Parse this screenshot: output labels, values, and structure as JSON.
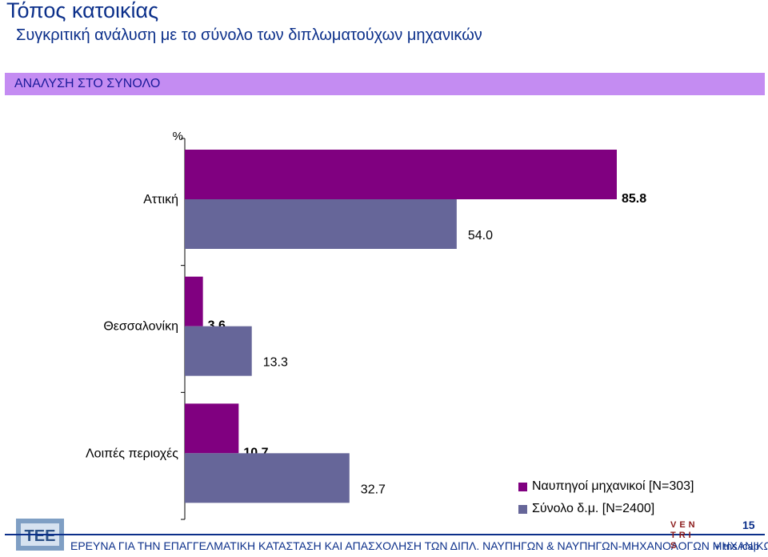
{
  "header": {
    "title": "Τόπος κατοικίας",
    "subtitle": "Συγκριτική ανάλυση με το σύνολο των διπλωματούχων μηχανικών",
    "band_label": "ΑΝΑΛΥΣΗ ΣΤΟ ΣΥΝΟΛΟ"
  },
  "chart_data": {
    "type": "bar",
    "orientation": "horizontal",
    "unit_label": "%",
    "categories": [
      "Αττική",
      "Θεσσαλονίκη",
      "Λοιπές περιοχές"
    ],
    "series": [
      {
        "name": "Ναυπηγοί μηχανικοί [Ν=303]",
        "color": "#800080",
        "values": [
          85.8,
          3.6,
          10.7
        ],
        "labels": [
          "85.8",
          "3.6",
          "10.7"
        ]
      },
      {
        "name": "Σύνολο δ.μ. [Ν=2400]",
        "color": "#666699",
        "values": [
          54.0,
          13.3,
          32.7
        ],
        "labels": [
          "54.0",
          "13.3",
          "32.7"
        ]
      }
    ],
    "xlim": [
      0,
      100
    ],
    "grid": false,
    "legend_position": "bottom-right"
  },
  "footer": {
    "text": "ΕΡΕΥΝΑ ΓΙΑ ΤΗΝ ΕΠΑΓΓΕΛΜΑΤΙΚΗ ΚΑΤΑΣΤΑΣΗ ΚΑΙ ΑΠΑΣΧΟΛΗΣΗ ΤΩΝ ΔΙΠΛ. ΝΑΥΠΗΓΩΝ & ΝΑΥΠΗΓΩΝ-ΜΗΧΑΝΟΛΟΓΩΝ ΜΗΧΑΝΙΚΩΝ",
    "page_number": "15",
    "logo_left": "ΤΕΕ",
    "logo_right_lines": [
      "VEN",
      "TRI",
      "S"
    ],
    "brand": "+ tns icap"
  }
}
